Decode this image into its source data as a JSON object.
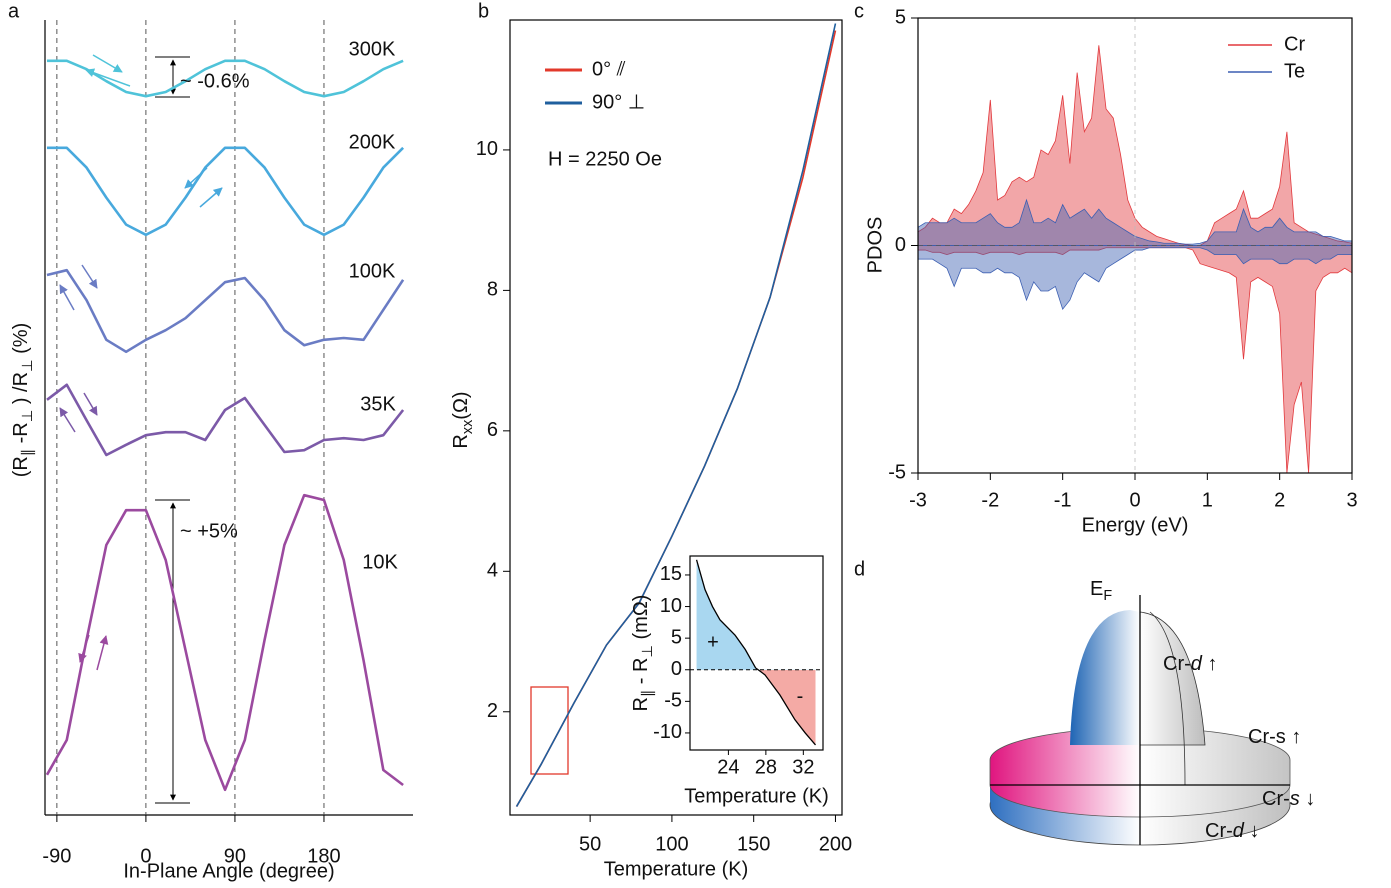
{
  "chart_data": [
    {
      "type": "line",
      "panel": "a",
      "xlabel": "In-Plane Angle (degree)",
      "ylabel": [
        "(R",
        "∥",
        " -R",
        "⊥",
        " ) /R",
        "⊥",
        "  (%)"
      ],
      "x": [
        -100,
        -80,
        -60,
        -40,
        -20,
        0,
        20,
        40,
        60,
        80,
        100,
        120,
        140,
        160,
        180,
        200,
        220,
        240,
        260
      ],
      "series": [
        {
          "name": "300K",
          "color": "#4fc3d9",
          "values": [
            12.57,
            12.57,
            12.43,
            12.23,
            12.05,
            11.98,
            12.05,
            12.23,
            12.43,
            12.57,
            12.57,
            12.43,
            12.23,
            12.05,
            11.98,
            12.05,
            12.23,
            12.43,
            12.57
          ]
        },
        {
          "name": "200K",
          "color": "#48a9dd",
          "values": [
            11.12,
            11.12,
            10.79,
            10.29,
            9.84,
            9.67,
            9.84,
            10.29,
            10.79,
            11.12,
            11.12,
            10.79,
            10.29,
            9.84,
            9.67,
            9.84,
            10.29,
            10.79,
            11.12
          ]
        },
        {
          "name": "100K",
          "color": "#6a7cc4",
          "values": [
            9.0,
            9.08,
            8.58,
            7.92,
            7.72,
            7.92,
            8.08,
            8.28,
            8.58,
            8.88,
            8.95,
            8.58,
            8.08,
            7.83,
            7.92,
            7.95,
            7.92,
            8.42,
            8.92
          ]
        },
        {
          "name": "35K",
          "color": "#7c5aa8",
          "values": [
            6.92,
            7.17,
            6.58,
            6.0,
            6.17,
            6.33,
            6.38,
            6.38,
            6.25,
            6.75,
            6.95,
            6.5,
            6.05,
            6.08,
            6.25,
            6.28,
            6.25,
            6.33,
            6.75
          ]
        },
        {
          "name": "10K",
          "color": "#9b4a9f",
          "values": [
            0.67,
            1.25,
            2.92,
            4.5,
            5.08,
            5.08,
            4.25,
            2.75,
            1.25,
            0.42,
            1.25,
            2.92,
            4.5,
            5.33,
            5.25,
            4.25,
            2.58,
            0.75,
            0.5
          ]
        }
      ],
      "annotations": [
        "~ -0.6%",
        "~ +5%"
      ],
      "xlim": [
        -102,
        270
      ],
      "ylim": [
        0,
        13.25
      ],
      "xticks": [
        -90,
        0,
        90,
        180
      ],
      "grid": true
    },
    {
      "type": "line",
      "panel": "b",
      "xlabel": "Temperature (K)",
      "ylabel": [
        "R",
        "xx",
        "(Ω)"
      ],
      "x": [
        5,
        20,
        40,
        60,
        80,
        100,
        120,
        140,
        160,
        180,
        200
      ],
      "series": [
        {
          "name": "0° ⫽",
          "color": "#e2392b",
          "values": [
            0.65,
            1.25,
            2.12,
            2.95,
            3.55,
            4.5,
            5.5,
            6.6,
            7.9,
            9.6,
            11.7
          ]
        },
        {
          "name": "90° ⊥",
          "color": "#1f5f9e",
          "values": [
            0.65,
            1.25,
            2.12,
            2.95,
            3.55,
            4.5,
            5.5,
            6.6,
            7.9,
            9.7,
            11.8
          ]
        }
      ],
      "annotations": [
        "H = 2250 Oe"
      ],
      "xlim": [
        1,
        204
      ],
      "ylim": [
        0.53,
        11.85
      ],
      "xticks": [
        50,
        100,
        150,
        200
      ],
      "yticks": [
        2,
        4,
        6,
        8,
        10
      ]
    },
    {
      "type": "line",
      "xlabel": "Temperature (K)",
      "ylabel": [
        "R",
        "∥",
        " - R",
        "⊥",
        "  (mΩ)"
      ],
      "x": [
        20.6,
        21.5,
        22.3,
        23.1,
        24.7,
        25.8,
        26.9,
        27.9,
        29.5,
        31.1,
        32.2,
        33.3
      ],
      "values": [
        17.4,
        12.7,
        10,
        7.9,
        5.5,
        3.2,
        0.3,
        -0.8,
        -4,
        -7.9,
        -10,
        -11.9
      ],
      "color": "#000000",
      "fill_colors": {
        "positive": "#a9d7f0",
        "negative": "#f4aaa5"
      },
      "annotations": [
        "+",
        "-"
      ],
      "xlim": [
        19.9,
        34.1
      ],
      "ylim": [
        -12.7,
        18
      ],
      "xticks": [
        24,
        28,
        32
      ],
      "yticks": [
        -10,
        -5,
        0,
        5,
        10,
        15
      ]
    },
    {
      "type": "area",
      "panel": "c",
      "xlabel": "Energy (eV)",
      "ylabel": "PDOS",
      "x": [
        -3,
        -2.9,
        -2.8,
        -2.7,
        -2.6,
        -2.5,
        -2.4,
        -2.3,
        -2.2,
        -2.1,
        -2,
        -1.9,
        -1.8,
        -1.7,
        -1.6,
        -1.5,
        -1.4,
        -1.3,
        -1.2,
        -1.1,
        -1,
        -0.9,
        -0.8,
        -0.7,
        -0.6,
        -0.5,
        -0.4,
        -0.3,
        -0.2,
        -0.1,
        0,
        0.1,
        0.2,
        0.3,
        0.4,
        0.5,
        0.6,
        0.7,
        0.8,
        0.9,
        1,
        1.1,
        1.2,
        1.3,
        1.4,
        1.5,
        1.6,
        1.7,
        1.8,
        1.9,
        2,
        2.1,
        2.2,
        2.3,
        2.4,
        2.5,
        2.6,
        2.7,
        2.8,
        2.9,
        3
      ],
      "series": [
        {
          "name": "Cr",
          "color": "#e2393d",
          "up": [
            0.3,
            0.4,
            0.6,
            0.5,
            0.5,
            0.8,
            0.7,
            0.9,
            1.2,
            1.6,
            3.2,
            1.0,
            1.1,
            1.4,
            1.5,
            1.4,
            1.5,
            2.1,
            2.0,
            2.3,
            3.3,
            1.8,
            3.8,
            2.5,
            2.8,
            4.4,
            3.0,
            2.8,
            2.0,
            1.0,
            0.6,
            0.4,
            0.3,
            0.2,
            0.15,
            0.1,
            0.05,
            0.02,
            0,
            0,
            0.1,
            0.5,
            0.6,
            0.7,
            0.8,
            1.2,
            0.6,
            0.6,
            0.7,
            0.8,
            1.3,
            2.5,
            0.5,
            0.4,
            0.3,
            0.25,
            0.2,
            0.15,
            0.1,
            0.08,
            0.05
          ],
          "down": [
            -0.1,
            -0.1,
            -0.15,
            -0.15,
            -0.2,
            -0.15,
            -0.15,
            -0.15,
            -0.15,
            -0.2,
            -0.15,
            -0.15,
            -0.15,
            -0.15,
            -0.2,
            -0.15,
            -0.15,
            -0.15,
            -0.15,
            -0.15,
            -0.2,
            -0.1,
            -0.1,
            -0.1,
            -0.1,
            -0.1,
            -0.05,
            -0.05,
            -0.05,
            -0.05,
            -0.05,
            -0.05,
            -0.05,
            -0.05,
            -0.05,
            -0.05,
            -0.05,
            -0.05,
            -0.1,
            -0.4,
            -0.45,
            -0.5,
            -0.55,
            -0.6,
            -0.7,
            -2.5,
            -0.8,
            -0.7,
            -0.8,
            -0.9,
            -1.5,
            -5.0,
            -3.5,
            -3.0,
            -5.0,
            -1.0,
            -0.7,
            -0.6,
            -0.6,
            -0.5,
            -0.6
          ]
        },
        {
          "name": "Te",
          "color": "#3c5fb2",
          "up": [
            0.4,
            0.5,
            0.5,
            0.5,
            0.5,
            0.6,
            0.5,
            0.5,
            0.5,
            0.6,
            0.7,
            0.5,
            0.4,
            0.4,
            0.5,
            1.0,
            0.5,
            0.5,
            0.6,
            0.5,
            0.9,
            0.6,
            0.7,
            0.8,
            0.6,
            0.8,
            0.6,
            0.5,
            0.4,
            0.3,
            0.2,
            0.15,
            0.1,
            0.08,
            0.05,
            0.05,
            0.05,
            0.03,
            0.03,
            0.05,
            0.1,
            0.3,
            0.3,
            0.3,
            0.3,
            0.8,
            0.4,
            0.3,
            0.4,
            0.4,
            0.6,
            0.4,
            0.3,
            0.3,
            0.3,
            0.3,
            0.2,
            0.2,
            0.15,
            0.1,
            0.1
          ],
          "down": [
            -0.3,
            -0.3,
            -0.3,
            -0.4,
            -0.5,
            -0.9,
            -0.5,
            -0.5,
            -0.5,
            -0.6,
            -0.6,
            -0.5,
            -0.6,
            -0.6,
            -0.7,
            -1.2,
            -0.8,
            -1.0,
            -1.0,
            -0.9,
            -1.4,
            -1.2,
            -0.8,
            -0.6,
            -0.7,
            -0.8,
            -0.5,
            -0.4,
            -0.3,
            -0.2,
            -0.1,
            -0.1,
            -0.05,
            -0.05,
            -0.05,
            -0.05,
            -0.05,
            -0.05,
            -0.05,
            -0.05,
            -0.1,
            -0.2,
            -0.2,
            -0.2,
            -0.2,
            -0.4,
            -0.3,
            -0.3,
            -0.3,
            -0.3,
            -0.4,
            -0.4,
            -0.3,
            -0.3,
            -0.3,
            -0.4,
            -0.3,
            -0.3,
            -0.2,
            -0.2,
            -0.2
          ]
        }
      ],
      "xlim": [
        -3,
        3
      ],
      "ylim": [
        -5,
        5
      ],
      "xticks": [
        -3,
        -2,
        -1,
        0,
        1,
        2,
        3
      ],
      "yticks": [
        -5,
        0,
        5
      ],
      "legend": "upper right"
    }
  ],
  "diagram": {
    "panel": "d",
    "fermi": [
      "E",
      "F"
    ],
    "labels": [
      [
        "Cr-",
        "d",
        " ↑"
      ],
      [
        "Cr-s ↑"
      ],
      [
        "Cr-",
        "s",
        " ↓"
      ],
      [
        "Cr-",
        "d",
        " ↓"
      ]
    ]
  }
}
